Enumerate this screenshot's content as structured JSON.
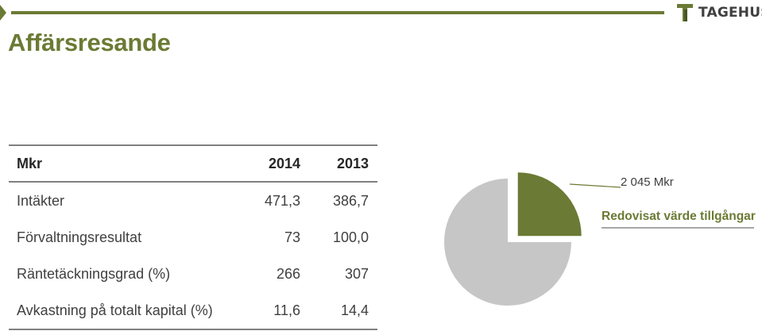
{
  "title": "Affärsresande",
  "logo": {
    "text": "TAGEHUS"
  },
  "table": {
    "headers": [
      "Mkr",
      "2014",
      "2013"
    ],
    "rows": [
      [
        "Intäkter",
        "471,3",
        "386,7"
      ],
      [
        "Förvaltningsresultat",
        "73",
        "100,0"
      ],
      [
        "Räntetäckningsgrad (%)",
        "266",
        "307"
      ],
      [
        "Avkastning på totalt kapital (%)",
        "11,6",
        "14,4"
      ]
    ]
  },
  "chart_data": {
    "type": "pie",
    "values": [
      25,
      75
    ],
    "colors": [
      "#6b7a34",
      "#c6c6c6"
    ],
    "annotations": {
      "value": "2 045 Mkr",
      "label": "Redovisat värde tillgångar"
    }
  },
  "colors": {
    "accent": "#6b7a34",
    "pie_rest": "#c6c6c6",
    "rule": "#808080"
  }
}
